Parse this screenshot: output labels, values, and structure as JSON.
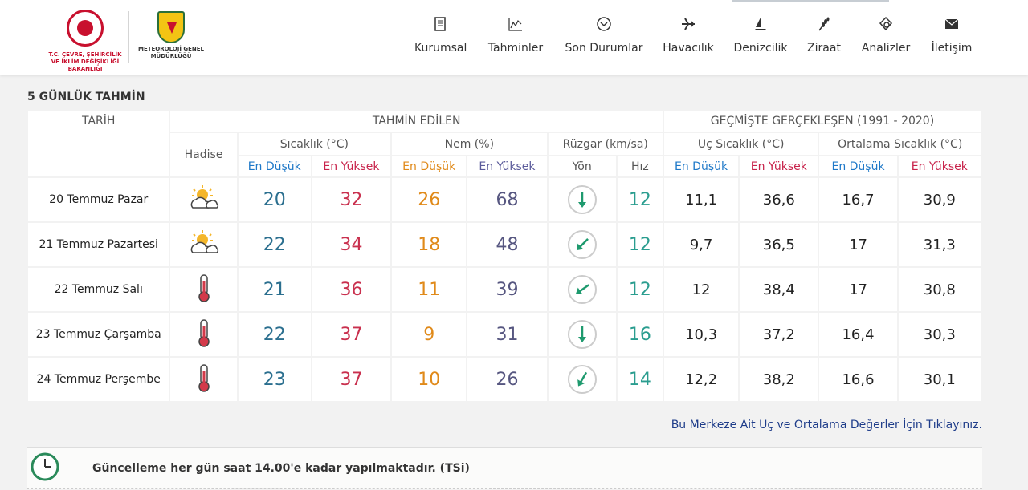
{
  "header": {
    "ministry_logo_text": "T.C. ÇEVRE, ŞEHİRCİLİK VE İKLİM DEĞİŞİKLİĞİ BAKANLIĞI",
    "mgm_logo_text": "METEOROLOJİ GENEL MÜDÜRLÜĞÜ",
    "nav": [
      {
        "label": "Kurumsal",
        "icon": "document-icon"
      },
      {
        "label": "Tahminler",
        "icon": "chart-icon"
      },
      {
        "label": "Son Durumlar",
        "icon": "chevron-circle-icon"
      },
      {
        "label": "Havacılık",
        "icon": "airplane-icon"
      },
      {
        "label": "Denizcilik",
        "icon": "sailboat-icon"
      },
      {
        "label": "Ziraat",
        "icon": "wheat-icon"
      },
      {
        "label": "Analizler",
        "icon": "analysis-icon"
      },
      {
        "label": "İletişim",
        "icon": "envelope-icon"
      }
    ]
  },
  "section_title": "5 GÜNLÜK TAHMİN",
  "table": {
    "group_forecast": "TAHMİN EDİLEN",
    "group_history": "GEÇMİŞTE GERÇEKLEŞEN (1991 - 2020)",
    "col_date": "TARİH",
    "col_event": "Hadise",
    "col_temp": "Sıcaklık (°C)",
    "col_hum": "Nem (%)",
    "col_wind": "Rüzgar (km/sa)",
    "col_extreme": "Uç Sıcaklık (°C)",
    "col_avg": "Ortalama Sıcaklık (°C)",
    "low": "En Düşük",
    "high": "En Yüksek",
    "dir": "Yön",
    "speed": "Hız",
    "rows": [
      {
        "date": "20 Temmuz Pazar",
        "icon": "partly-cloudy-icon",
        "tlow": "20",
        "thigh": "32",
        "hlow": "26",
        "hhigh": "68",
        "wind_dir_deg": 180,
        "wind": "12",
        "xlow": "11,1",
        "xhigh": "36,6",
        "alow": "16,7",
        "ahigh": "30,9"
      },
      {
        "date": "21 Temmuz Pazartesi",
        "icon": "partly-cloudy-icon",
        "tlow": "22",
        "thigh": "34",
        "hlow": "18",
        "hhigh": "48",
        "wind_dir_deg": 225,
        "wind": "12",
        "xlow": "9,7",
        "xhigh": "36,5",
        "alow": "17",
        "ahigh": "31,3"
      },
      {
        "date": "22 Temmuz Salı",
        "icon": "thermometer-icon",
        "tlow": "21",
        "thigh": "36",
        "hlow": "11",
        "hhigh": "39",
        "wind_dir_deg": 235,
        "wind": "12",
        "xlow": "12",
        "xhigh": "38,4",
        "alow": "17",
        "ahigh": "30,8"
      },
      {
        "date": "23 Temmuz Çarşamba",
        "icon": "thermometer-icon",
        "tlow": "22",
        "thigh": "37",
        "hlow": "9",
        "hhigh": "31",
        "wind_dir_deg": 180,
        "wind": "16",
        "xlow": "10,3",
        "xhigh": "37,2",
        "alow": "16,4",
        "ahigh": "30,3"
      },
      {
        "date": "24 Temmuz Perşembe",
        "icon": "thermometer-icon",
        "tlow": "23",
        "thigh": "37",
        "hlow": "10",
        "hhigh": "26",
        "wind_dir_deg": 210,
        "wind": "14",
        "xlow": "12,2",
        "xhigh": "38,2",
        "alow": "16,6",
        "ahigh": "30,1"
      }
    ]
  },
  "link_text": "Bu Merkeze Ait Uç ve Ortalama Değerler İçin Tıklayınız.",
  "notice_text": "Güncelleme her gün saat 14.00'e kadar yapılmaktadır. (TSi)",
  "colors": {
    "low": "#1e78c8",
    "high": "#c8234b",
    "wind": "#2a9d8f",
    "link": "#1f3d8a"
  }
}
